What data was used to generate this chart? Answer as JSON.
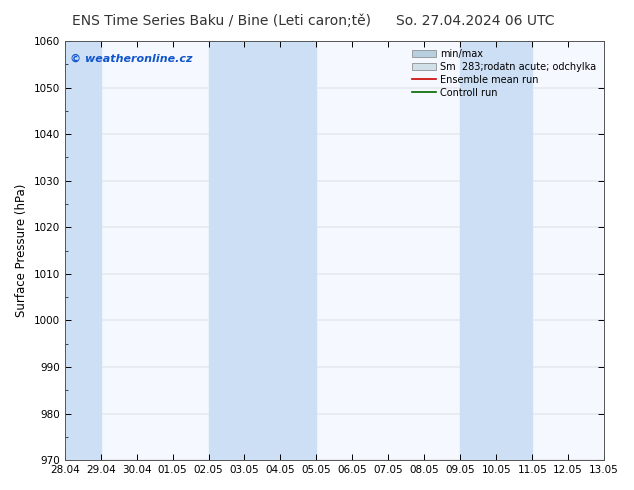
{
  "title_left": "ENS Time Series Baku / Bine (Leti caron;tě)",
  "title_right": "So. 27.04.2024 06 UTC",
  "ylabel": "Surface Pressure (hPa)",
  "ylim": [
    970,
    1060
  ],
  "yticks": [
    970,
    980,
    990,
    1000,
    1010,
    1020,
    1030,
    1040,
    1050,
    1060
  ],
  "xtick_labels": [
    "28.04",
    "29.04",
    "30.04",
    "01.05",
    "02.05",
    "03.05",
    "04.05",
    "05.05",
    "06.05",
    "07.05",
    "08.05",
    "09.05",
    "10.05",
    "11.05",
    "12.05",
    "13.05"
  ],
  "xtick_positions": [
    0,
    1,
    2,
    3,
    4,
    5,
    6,
    7,
    8,
    9,
    10,
    11,
    12,
    13,
    14,
    15
  ],
  "xlim": [
    0,
    15
  ],
  "plot_bg_color": "#f5f9ff",
  "stripe_positions": [
    0,
    4,
    5,
    6,
    11,
    12
  ],
  "stripe_color": "#ccdff5",
  "minmax_legend_color": "#b8cfe0",
  "std_legend_color": "#d0dfe8",
  "ensemble_mean_color": "#cc0000",
  "control_run_color": "#006600",
  "watermark_text": "© weatheronline.cz",
  "watermark_color": "#1155cc",
  "legend_labels": [
    "min/max",
    "Sm  283;rodatn acute; odchylka",
    "Ensemble mean run",
    "Controll run"
  ],
  "title_fontsize": 10,
  "tick_fontsize": 7.5,
  "ylabel_fontsize": 8.5
}
